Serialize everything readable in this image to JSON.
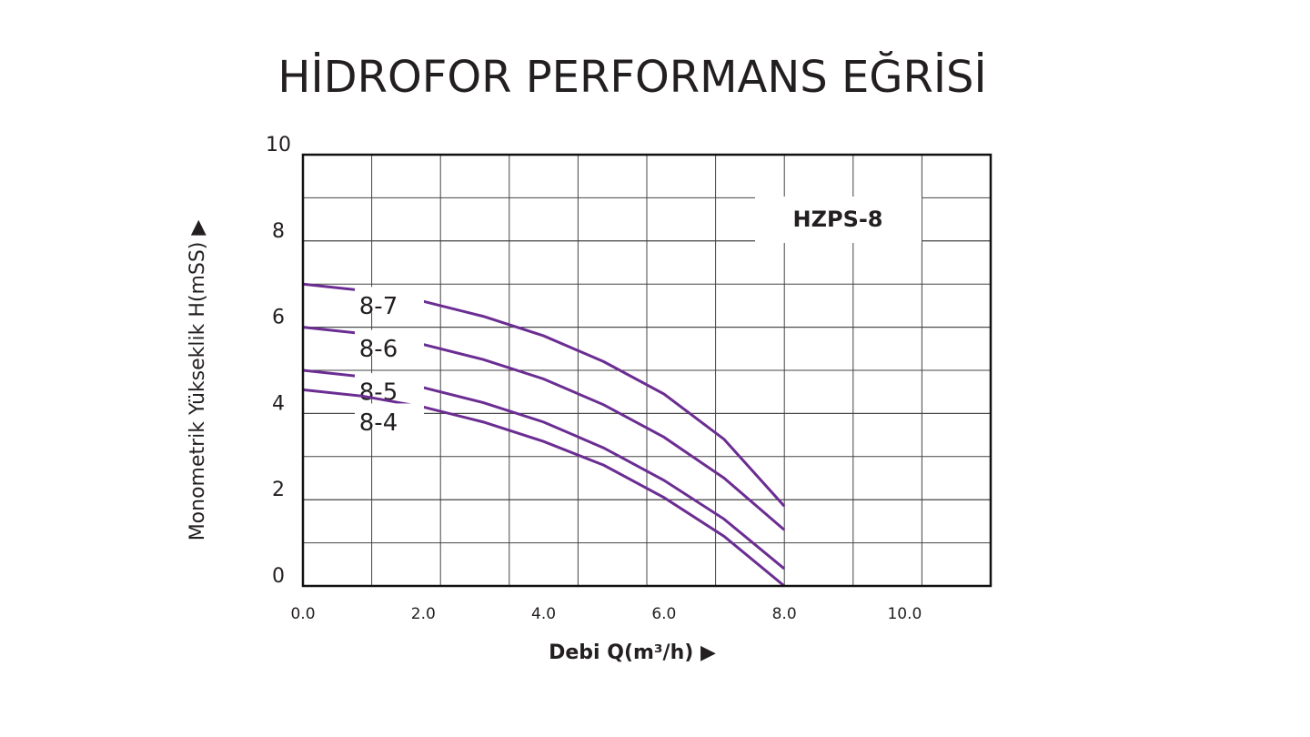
{
  "chart_data": {
    "type": "line",
    "title": "HİDROFOR PERFORMANS EĞRİSİ",
    "annotation": "HZPS-8",
    "x_label": "Debi Q(m³/h) ▶",
    "y_label": "Monometrik Yükseklik H(mSS) ▶",
    "x": [
      0,
      1,
      2,
      3,
      4,
      5,
      6,
      7,
      8
    ],
    "series": [
      {
        "name": "8-7",
        "color": "#6b2d92",
        "values": [
          7.0,
          6.85,
          6.6,
          6.25,
          5.8,
          5.2,
          4.45,
          3.4,
          1.85
        ]
      },
      {
        "name": "8-6",
        "color": "#6b2d92",
        "values": [
          6.0,
          5.85,
          5.6,
          5.25,
          4.8,
          4.2,
          3.45,
          2.5,
          1.3
        ]
      },
      {
        "name": "8-5",
        "color": "#6b2d92",
        "values": [
          5.0,
          4.85,
          4.6,
          4.25,
          3.8,
          3.2,
          2.45,
          1.55,
          0.4
        ]
      },
      {
        "name": "8-4",
        "color": "#6b2d92",
        "values": [
          4.55,
          4.4,
          4.15,
          3.8,
          3.35,
          2.8,
          2.05,
          1.15,
          0.0
        ]
      }
    ],
    "xlim": [
      0,
      11.43
    ],
    "xticks": [
      {
        "value": 0,
        "label": "0.0"
      },
      {
        "value": 2,
        "label": "2.0"
      },
      {
        "value": 4,
        "label": "4.0"
      },
      {
        "value": 6,
        "label": "6.0"
      },
      {
        "value": 8,
        "label": "8.0"
      },
      {
        "value": 10,
        "label": "10.0"
      }
    ],
    "ylim": [
      0,
      10
    ],
    "yticks": [
      0,
      2,
      4,
      6,
      8,
      10
    ],
    "grid": true
  }
}
